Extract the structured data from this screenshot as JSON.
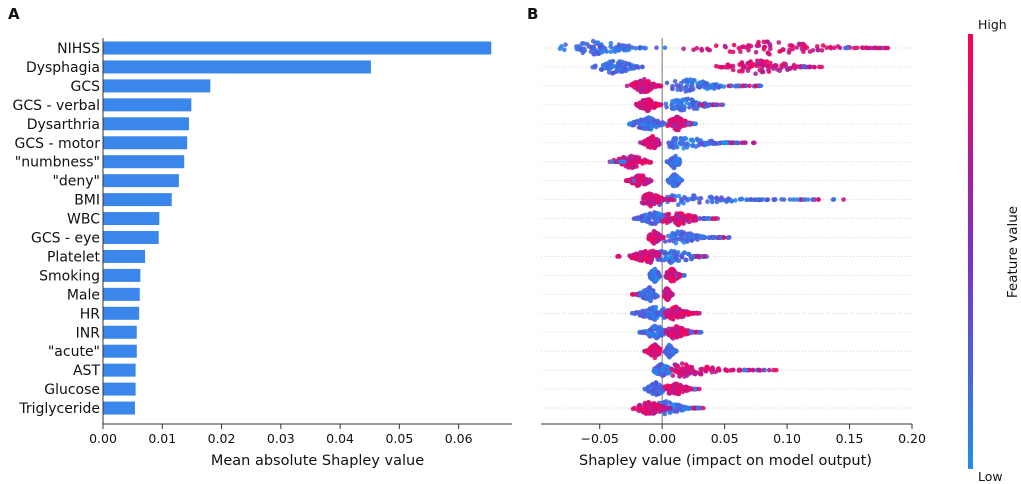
{
  "panels": {
    "a_label": "A",
    "b_label": "B"
  },
  "colors": {
    "bar": "#3a86eb",
    "low": "#1f8ef1",
    "high": "#ff0052",
    "mid": "#7b31c8",
    "axis": "#333333",
    "zero_line": "#777777"
  },
  "chart_data": [
    {
      "type": "bar",
      "orientation": "horizontal",
      "panel": "A",
      "categories": [
        "NIHSS",
        "Dysphagia",
        "GCS",
        "GCS - verbal",
        "Dysarthria",
        "GCS - motor",
        "\"numbness\"",
        "\"deny\"",
        "BMI",
        "WBC",
        "GCS - eye",
        "Platelet",
        "Smoking",
        "Male",
        "HR",
        "INR",
        "\"acute\"",
        "AST",
        "Glucose",
        "Triglyceride"
      ],
      "values": [
        0.0655,
        0.0452,
        0.0181,
        0.0149,
        0.0145,
        0.0142,
        0.0137,
        0.0128,
        0.0116,
        0.0095,
        0.0094,
        0.0071,
        0.0063,
        0.0062,
        0.0061,
        0.0057,
        0.0057,
        0.0055,
        0.0055,
        0.0054
      ],
      "xlabel": "Mean absolute Shapley value",
      "xlim": [
        0.0,
        0.069
      ],
      "xticks": [
        0.0,
        0.01,
        0.02,
        0.03,
        0.04,
        0.05,
        0.06
      ],
      "xtick_labels": [
        "0.00",
        "0.01",
        "0.02",
        "0.03",
        "0.04",
        "0.05",
        "0.06"
      ]
    },
    {
      "type": "beeswarm",
      "panel": "B",
      "xlabel": "Shapley value (impact on model output)",
      "xlim": [
        -0.097,
        0.2
      ],
      "xticks": [
        -0.05,
        0.0,
        0.05,
        0.1,
        0.15,
        0.2
      ],
      "xtick_labels": [
        "−0.05",
        "0.00",
        "0.05",
        "0.10",
        "0.15",
        "0.20"
      ],
      "colorbar": {
        "title": "Feature value",
        "high_label": "High",
        "low_label": "Low"
      },
      "rows": [
        {
          "feature": "NIHSS",
          "low_range": [
            -0.085,
            0.01
          ],
          "low_peak": -0.055,
          "high_range": [
            0.01,
            0.185
          ],
          "high_peak": 0.08,
          "tail": [
            0.14,
            0.185
          ]
        },
        {
          "feature": "Dysphagia",
          "low_range": [
            -0.058,
            -0.012
          ],
          "low_peak": -0.038,
          "high_range": [
            0.038,
            0.132
          ],
          "high_peak": 0.075,
          "tail": [
            0.11,
            0.132
          ]
        },
        {
          "feature": "GCS",
          "low_range": [
            0.0,
            0.08
          ],
          "low_peak": 0.02,
          "high_range": [
            -0.03,
            0.0
          ],
          "high_peak": -0.015,
          "tail": [
            0.05,
            0.08
          ]
        },
        {
          "feature": "GCS - verbal",
          "low_range": [
            0.0,
            0.05
          ],
          "low_peak": 0.018,
          "high_range": [
            -0.022,
            0.0
          ],
          "high_peak": -0.012,
          "tail": [
            0.03,
            0.05
          ]
        },
        {
          "feature": "Dysarthria",
          "low_range": [
            -0.03,
            0.005
          ],
          "low_peak": -0.012,
          "high_range": [
            0.003,
            0.028
          ],
          "high_peak": 0.012,
          "tail": [
            0.02,
            0.028
          ]
        },
        {
          "feature": "GCS - motor",
          "low_range": [
            0.0,
            0.075
          ],
          "low_peak": 0.015,
          "high_range": [
            -0.018,
            0.0
          ],
          "high_peak": -0.008,
          "tail": [
            0.05,
            0.075
          ]
        },
        {
          "feature": "\"numbness\"",
          "low_range": [
            0.003,
            0.016
          ],
          "low_peak": 0.01,
          "high_range": [
            -0.045,
            -0.006
          ],
          "high_peak": -0.025,
          "tail": [
            -0.045,
            -0.03
          ]
        },
        {
          "feature": "\"deny\"",
          "low_range": [
            0.003,
            0.016
          ],
          "low_peak": 0.01,
          "high_range": [
            -0.03,
            -0.008
          ],
          "high_peak": -0.018,
          "tail": [
            -0.03,
            -0.02
          ]
        },
        {
          "feature": "BMI",
          "low_range": [
            -0.01,
            0.15
          ],
          "low_peak": 0.0,
          "high_range": [
            -0.018,
            0.01
          ],
          "high_peak": -0.01,
          "tail": [
            0.1,
            0.15
          ]
        },
        {
          "feature": "WBC",
          "low_range": [
            -0.025,
            0.01
          ],
          "low_peak": -0.006,
          "high_range": [
            0.0,
            0.045
          ],
          "high_peak": 0.012,
          "tail": [
            0.03,
            0.045
          ]
        },
        {
          "feature": "GCS - eye",
          "low_range": [
            0.002,
            0.057
          ],
          "low_peak": 0.012,
          "high_range": [
            -0.012,
            0.002
          ],
          "high_peak": -0.006,
          "tail": [
            0.04,
            0.057
          ]
        },
        {
          "feature": "Platelet",
          "low_range": [
            -0.025,
            0.04
          ],
          "low_peak": 0.005,
          "high_range": [
            -0.04,
            0.0
          ],
          "high_peak": -0.01,
          "tail": [
            0.025,
            0.04
          ]
        },
        {
          "feature": "Smoking",
          "low_range": [
            -0.012,
            0.0
          ],
          "low_peak": -0.006,
          "high_range": [
            0.002,
            0.018
          ],
          "high_peak": 0.008,
          "tail": [
            0.012,
            0.018
          ]
        },
        {
          "feature": "Male",
          "low_range": [
            -0.025,
            -0.003
          ],
          "low_peak": -0.01,
          "high_range": [
            0.001,
            0.009
          ],
          "high_peak": 0.004,
          "tail": [
            -0.025,
            -0.015
          ]
        },
        {
          "feature": "HR",
          "low_range": [
            -0.03,
            0.01
          ],
          "low_peak": -0.005,
          "high_range": [
            0.0,
            0.03
          ],
          "high_peak": 0.01,
          "tail": [
            0.02,
            0.03
          ]
        },
        {
          "feature": "INR",
          "low_range": [
            -0.02,
            0.005
          ],
          "low_peak": -0.005,
          "high_range": [
            0.0,
            0.032
          ],
          "high_peak": 0.01,
          "tail": [
            0.02,
            0.032
          ]
        },
        {
          "feature": "\"acute\"",
          "low_range": [
            0.002,
            0.012
          ],
          "low_peak": 0.006,
          "high_range": [
            -0.015,
            0.0
          ],
          "high_peak": -0.006,
          "tail": [
            -0.015,
            -0.01
          ]
        },
        {
          "feature": "AST",
          "low_range": [
            -0.008,
            0.012
          ],
          "low_peak": 0.0,
          "high_range": [
            0.005,
            0.093
          ],
          "high_peak": 0.015,
          "tail": [
            0.06,
            0.093
          ]
        },
        {
          "feature": "Glucose",
          "low_range": [
            -0.015,
            0.005
          ],
          "low_peak": -0.005,
          "high_range": [
            0.0,
            0.03
          ],
          "high_peak": 0.01,
          "tail": [
            0.02,
            0.03
          ]
        },
        {
          "feature": "Triglyceride",
          "low_range": [
            -0.01,
            0.035
          ],
          "low_peak": 0.003,
          "high_range": [
            -0.025,
            0.01
          ],
          "high_peak": -0.01,
          "tail": [
            0.02,
            0.035
          ]
        }
      ]
    }
  ]
}
